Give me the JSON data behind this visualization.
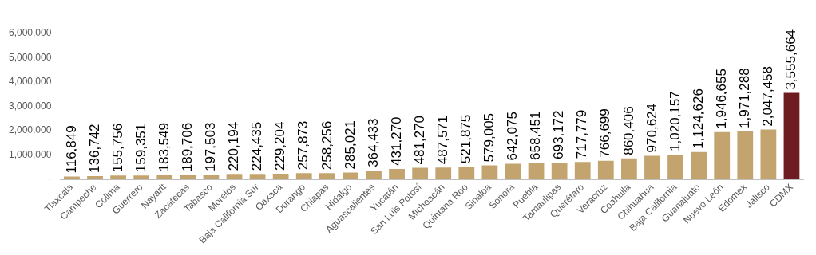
{
  "chart_data": {
    "type": "bar",
    "categories": [
      "Tlaxcala",
      "Campeche",
      "Colima",
      "Guerrero",
      "Nayarit",
      "Zacatecas",
      "Tabasco",
      "Morelos",
      "Baja California Sur",
      "Oaxaca",
      "Durango",
      "Chiapas",
      "Hidalgo",
      "Aguascalientes",
      "Yucatán",
      "San Luis Potosí",
      "Michoacán",
      "Quintana Roo",
      "Sinaloa",
      "Sonora",
      "Puebla",
      "Tamaulipas",
      "Querétaro",
      "Veracruz",
      "Coahuila",
      "Chihuahua",
      "Baja California",
      "Guanajuato",
      "Nuevo León",
      "Edomex",
      "Jalisco",
      "CDMX"
    ],
    "values": [
      116849,
      136742,
      155756,
      159351,
      183549,
      189706,
      197503,
      220194,
      224435,
      229204,
      257873,
      258256,
      285021,
      364433,
      431270,
      481270,
      487571,
      521875,
      579005,
      642075,
      658451,
      693172,
      717779,
      766699,
      860406,
      970624,
      1020157,
      1124626,
      1946655,
      1971288,
      2047458,
      3555664
    ],
    "colors": [
      "#c4a46e",
      "#c4a46e",
      "#c4a46e",
      "#c4a46e",
      "#c4a46e",
      "#c4a46e",
      "#c4a46e",
      "#c4a46e",
      "#c4a46e",
      "#c4a46e",
      "#c4a46e",
      "#c4a46e",
      "#c4a46e",
      "#c4a46e",
      "#c4a46e",
      "#c4a46e",
      "#c4a46e",
      "#c4a46e",
      "#c4a46e",
      "#c4a46e",
      "#c4a46e",
      "#c4a46e",
      "#c4a46e",
      "#c4a46e",
      "#c4a46e",
      "#c4a46e",
      "#c4a46e",
      "#c4a46e",
      "#c4a46e",
      "#c4a46e",
      "#c4a46e",
      "#6e1c22"
    ],
    "value_labels": [
      "116,849",
      "136,742",
      "155,756",
      "159,351",
      "183,549",
      "189,706",
      "197,503",
      "220,194",
      "224,435",
      "229,204",
      "257,873",
      "258,256",
      "285,021",
      "364,433",
      "431,270",
      "481,270",
      "487,571",
      "521,875",
      "579,005",
      "642,075",
      "658,451",
      "693,172",
      "717,779",
      "766,699",
      "860,406",
      "970,624",
      "1,020,157",
      "1,124,626",
      "1,946,655",
      "1,971,288",
      "2,047,458",
      "3,555,664"
    ],
    "ylim": [
      0,
      6000000
    ],
    "yticks": [
      {
        "value": 0,
        "label": "-"
      },
      {
        "value": 1000000,
        "label": "1,000,000"
      },
      {
        "value": 2000000,
        "label": "2,000,000"
      },
      {
        "value": 3000000,
        "label": "3,000,000"
      },
      {
        "value": 4000000,
        "label": "4,000,000"
      },
      {
        "value": 5000000,
        "label": "5,000,000"
      },
      {
        "value": 6000000,
        "label": "6,000,000"
      }
    ],
    "grid": false,
    "legend": false
  }
}
